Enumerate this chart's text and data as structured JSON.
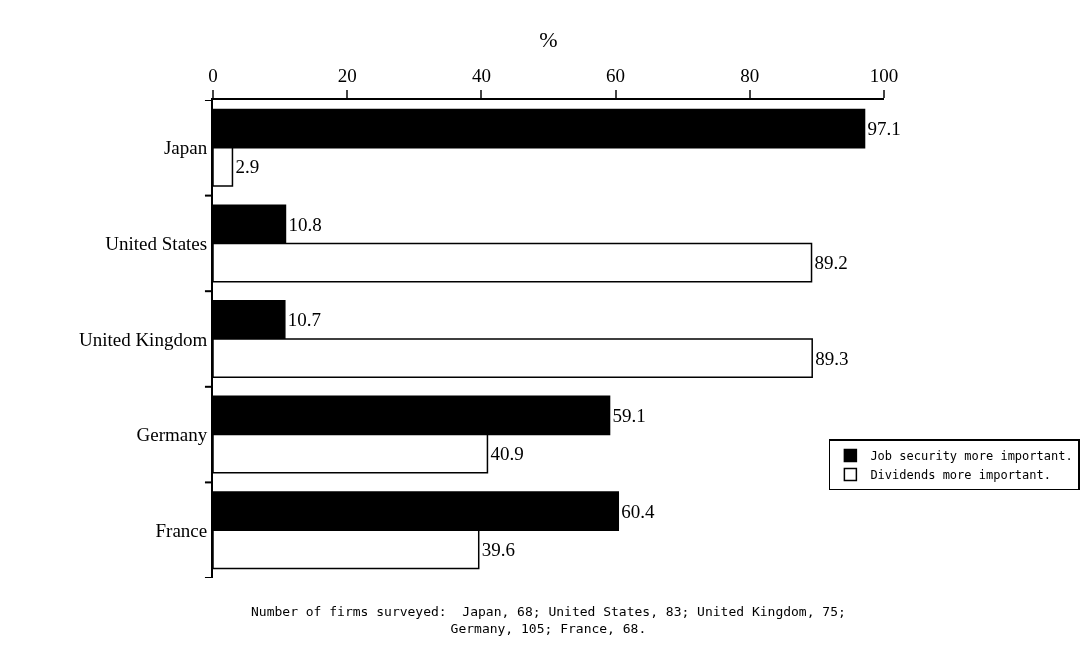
{
  "chart_data": {
    "type": "bar",
    "orientation": "horizontal",
    "xlabel": "%",
    "categories": [
      "Japan",
      "United States",
      "United Kingdom",
      "Germany",
      "France"
    ],
    "series": [
      {
        "name": "Job security more important.",
        "color": "#000000",
        "values": [
          97.1,
          10.8,
          10.7,
          59.1,
          60.4
        ]
      },
      {
        "name": "Dividends more important.",
        "color": "#ffffff",
        "values": [
          2.9,
          89.2,
          89.3,
          40.9,
          39.6
        ]
      }
    ],
    "xlim": [
      0,
      100
    ],
    "xticks": [
      0,
      20,
      40,
      60,
      80,
      100
    ],
    "data_labels": true,
    "legend": "bottom right",
    "annotations": [
      "Number of firms surveyed:  Japan, 68; United States, 83; United Kingdom, 75;\nGermany, 105; France, 68."
    ]
  }
}
